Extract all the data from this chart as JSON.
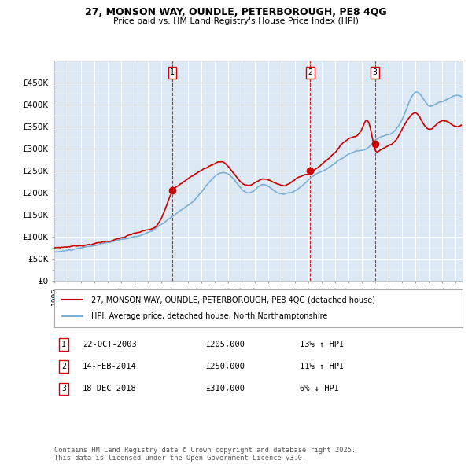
{
  "title_line1": "27, MONSON WAY, OUNDLE, PETERBOROUGH, PE8 4QG",
  "title_line2": "Price paid vs. HM Land Registry's House Price Index (HPI)",
  "bg_color": "#dce9f5",
  "red_line_color": "#cc0000",
  "blue_line_color": "#7bafd4",
  "sale_marker_color": "#cc0000",
  "dashed_line_color": "#cc0000",
  "ylim": [
    0,
    500000
  ],
  "yticks": [
    0,
    50000,
    100000,
    150000,
    200000,
    250000,
    300000,
    350000,
    400000,
    450000
  ],
  "ytick_labels": [
    "£0",
    "£50K",
    "£100K",
    "£150K",
    "£200K",
    "£250K",
    "£300K",
    "£350K",
    "£400K",
    "£450K"
  ],
  "sales": [
    {
      "label": "1",
      "date_str": "22-OCT-2003",
      "date_num": 2003.81,
      "price": 205000,
      "hpi_change": "13% ↑ HPI"
    },
    {
      "label": "2",
      "date_str": "14-FEB-2014",
      "date_num": 2014.12,
      "price": 250000,
      "hpi_change": "11% ↑ HPI"
    },
    {
      "label": "3",
      "date_str": "18-DEC-2018",
      "date_num": 2018.96,
      "price": 310000,
      "hpi_change": "6% ↓ HPI"
    }
  ],
  "legend_label_red": "27, MONSON WAY, OUNDLE, PETERBOROUGH, PE8 4QG (detached house)",
  "legend_label_blue": "HPI: Average price, detached house, North Northamptonshire",
  "footer_text": "Contains HM Land Registry data © Crown copyright and database right 2025.\nThis data is licensed under the Open Government Licence v3.0.",
  "xmin": 1995.0,
  "xmax": 2025.5
}
